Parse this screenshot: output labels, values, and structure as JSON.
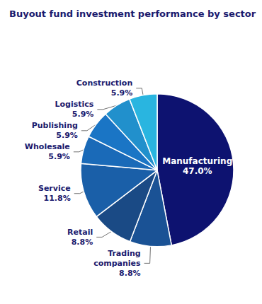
{
  "chart_data": {
    "type": "pie",
    "title": "Buyout fund investment performance by sector",
    "categories": [
      "Manufacturing",
      "Trading\ncompanies",
      "Retail",
      "Service",
      "Wholesale",
      "Publishing",
      "Logistics",
      "Construction"
    ],
    "values": [
      47.0,
      8.8,
      8.8,
      11.8,
      5.9,
      5.9,
      5.9,
      5.9
    ],
    "value_labels": [
      "47.0%",
      "8.8%",
      "8.8%",
      "11.8%",
      "5.9%",
      "5.9%",
      "5.9%",
      "5.9%"
    ],
    "colors": [
      "#0d1270",
      "#1a5295",
      "#1a4a85",
      "#1a5fa8",
      "#1a6ab8",
      "#1a75c5",
      "#2190cc",
      "#29b5e0"
    ],
    "data_labels": true
  }
}
